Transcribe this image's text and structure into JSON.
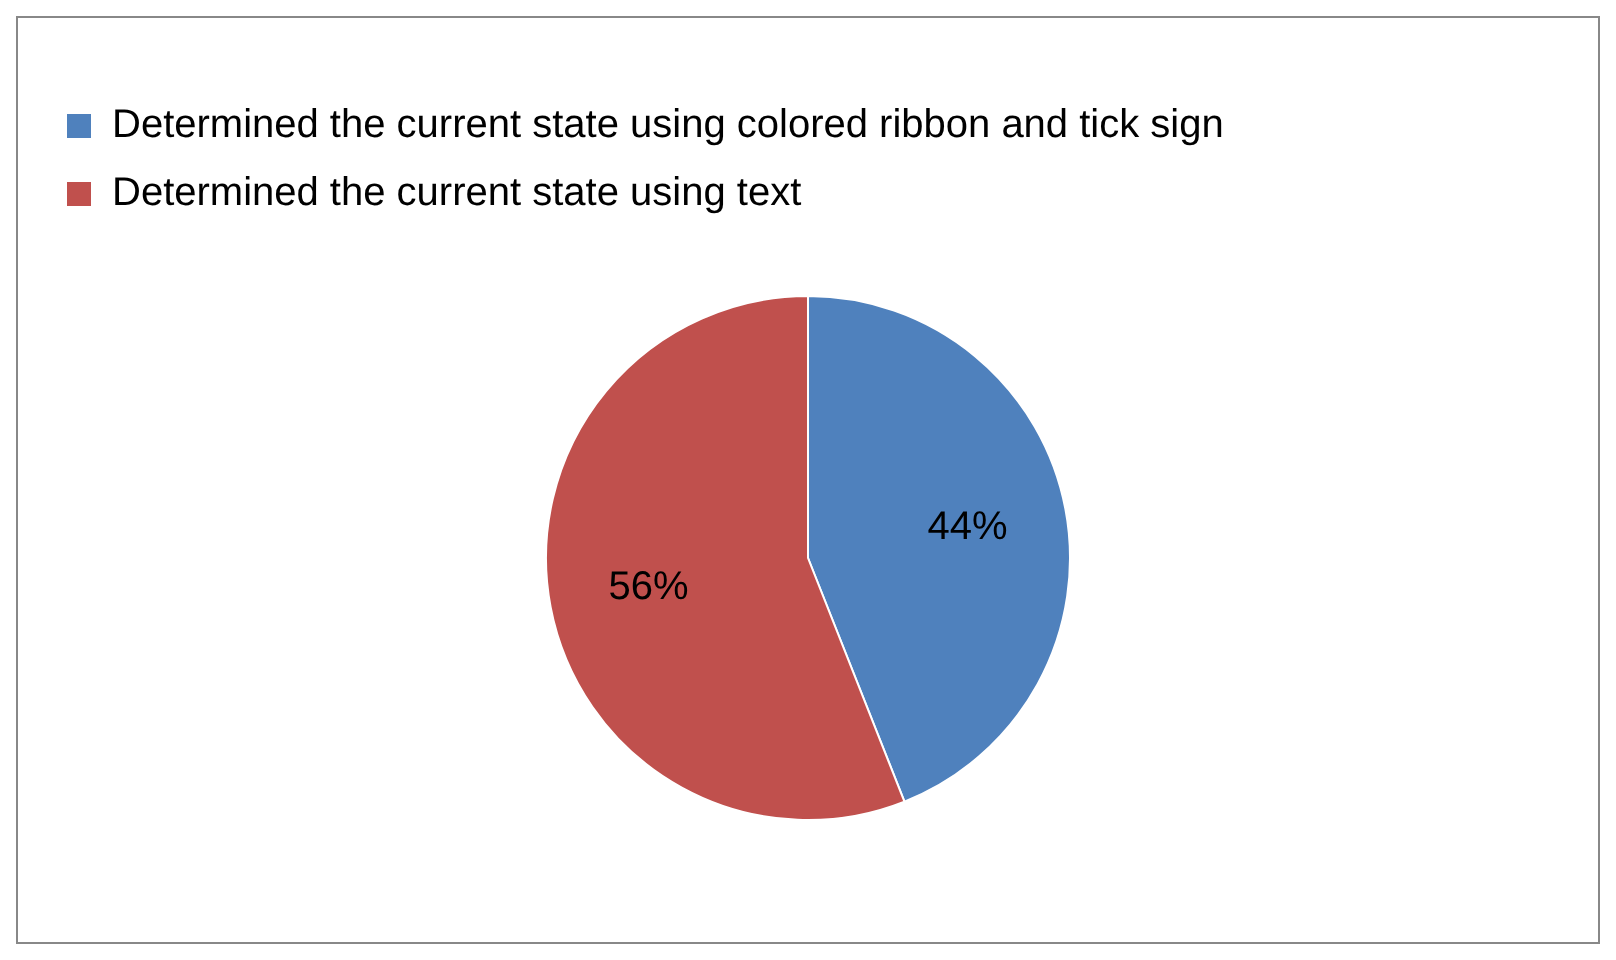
{
  "chart_data": {
    "type": "pie",
    "categories": [
      "Determined the current state using colored ribbon and tick sign",
      "Determined the current state using text"
    ],
    "values": [
      44,
      56
    ],
    "colors": [
      "#4f81bd",
      "#c0504d"
    ],
    "value_labels": [
      "44%",
      "56%"
    ],
    "legend": "top left"
  }
}
